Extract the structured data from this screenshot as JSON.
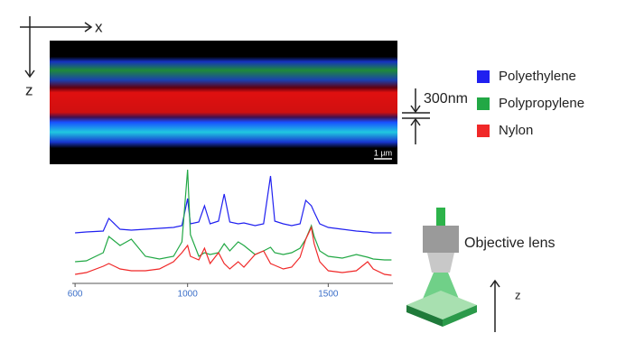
{
  "axes": {
    "x": "x",
    "z": "z"
  },
  "image": {
    "scale_label": "1 µm"
  },
  "thickness_label": "300nm",
  "objective_label": "Objective lens",
  "stage_axis": "z",
  "chart_data": {
    "type": "line",
    "x": [
      600,
      640,
      700,
      720,
      760,
      800,
      850,
      900,
      950,
      980,
      1000,
      1010,
      1040,
      1060,
      1080,
      1110,
      1130,
      1150,
      1180,
      1200,
      1240,
      1270,
      1295,
      1310,
      1340,
      1370,
      1400,
      1420,
      1440,
      1450,
      1470,
      1500,
      1550,
      1600,
      1640,
      1660,
      1700,
      1725
    ],
    "xlim": [
      590,
      1730
    ],
    "xticks": [
      600,
      1000,
      1500
    ],
    "ylim": [
      0,
      140
    ],
    "series": [
      {
        "name": "Polyethylene",
        "color": "#2020f0",
        "values": [
          62,
          63,
          64,
          78,
          66,
          65,
          66,
          67,
          68,
          70,
          100,
          72,
          74,
          92,
          72,
          75,
          105,
          74,
          72,
          73,
          70,
          72,
          125,
          75,
          72,
          70,
          72,
          98,
          92,
          85,
          72,
          68,
          66,
          64,
          63,
          62,
          62,
          62
        ]
      },
      {
        "name": "Polypropylene",
        "color": "#22a845",
        "values": [
          30,
          31,
          40,
          58,
          48,
          55,
          36,
          33,
          36,
          52,
          132,
          60,
          36,
          40,
          38,
          40,
          50,
          42,
          52,
          48,
          38,
          42,
          46,
          40,
          38,
          40,
          45,
          55,
          70,
          58,
          42,
          36,
          34,
          38,
          35,
          33,
          32,
          32
        ]
      },
      {
        "name": "Nylon",
        "color": "#f02828",
        "values": [
          16,
          18,
          25,
          28,
          22,
          20,
          20,
          22,
          30,
          40,
          48,
          36,
          32,
          45,
          28,
          40,
          28,
          22,
          30,
          24,
          38,
          42,
          28,
          26,
          22,
          24,
          35,
          55,
          68,
          50,
          30,
          20,
          18,
          20,
          30,
          22,
          16,
          15
        ]
      }
    ]
  }
}
